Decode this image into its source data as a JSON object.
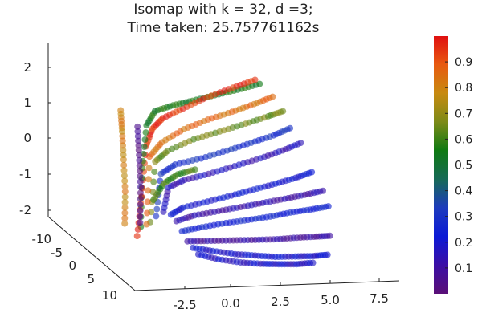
{
  "chart_data": {
    "type": "scatter",
    "title_line1": "Isomap with k = 32, d =3;",
    "title_line2": "Time taken: 25.757761162s",
    "z_axis": {
      "range": [
        -2.3,
        2.5
      ],
      "ticks": [
        "-2",
        "-1",
        "0",
        "1",
        "2"
      ]
    },
    "y_axis": {
      "range": [
        -12,
        13
      ],
      "ticks": [
        "-10",
        "-5",
        "0",
        "5",
        "10"
      ]
    },
    "x_axis": {
      "range": [
        -5,
        9
      ],
      "ticks": [
        "-2.5",
        "0.0",
        "2.5",
        "5.0",
        "7.5"
      ]
    },
    "colorbar": {
      "range": [
        0.0,
        1.0
      ],
      "ticks": [
        "0.1",
        "0.2",
        "0.3",
        "0.4",
        "0.5",
        "0.6",
        "0.7",
        "0.8",
        "0.9"
      ],
      "colors": [
        "#5a0f77",
        "#3b0fa6",
        "#0c1ad6",
        "#1d3bbd",
        "#176a57",
        "#0f7a12",
        "#7c8a18",
        "#c78a10",
        "#e85a10",
        "#e01010"
      ]
    },
    "marker_opacity": 0.62,
    "strands": [
      {
        "color_value": 0.95,
        "points": [
          [
            -2.6,
            0,
            -1.9
          ],
          [
            -2.2,
            -1,
            -0.9
          ],
          [
            -1.8,
            -2,
            0.4
          ],
          [
            -1.3,
            -3,
            0.8
          ],
          [
            -0.6,
            -4,
            1.0
          ],
          [
            0.5,
            -4.5,
            1.2
          ],
          [
            1.8,
            -5,
            1.45
          ],
          [
            3.2,
            -5.5,
            1.65
          ],
          [
            4.4,
            -6,
            1.8
          ]
        ]
      },
      {
        "color_value": 0.55,
        "points": [
          [
            -2.5,
            0.5,
            -1.6
          ],
          [
            -2.0,
            -2,
            -0.2
          ],
          [
            -1.6,
            -3,
            0.9
          ],
          [
            -1.0,
            -4,
            1.2
          ],
          [
            0.0,
            -4.5,
            1.3
          ],
          [
            1.0,
            -4.6,
            1.4
          ],
          [
            2.2,
            -5,
            1.5
          ],
          [
            3.4,
            -5.3,
            1.6
          ],
          [
            4.6,
            -5.8,
            1.7
          ]
        ]
      },
      {
        "color_value": 0.85,
        "points": [
          [
            -2.3,
            1,
            -1.5
          ],
          [
            -1.8,
            -1,
            0.2
          ],
          [
            -1.0,
            -2,
            0.5
          ],
          [
            0.2,
            -2.5,
            0.8
          ],
          [
            1.5,
            -3,
            1.0
          ],
          [
            2.8,
            -3.5,
            1.15
          ],
          [
            4.0,
            -4,
            1.3
          ],
          [
            5.0,
            -4.4,
            1.45
          ]
        ]
      },
      {
        "color_value": 0.65,
        "points": [
          [
            -2.2,
            1.5,
            -1.4
          ],
          [
            -1.6,
            -0.5,
            0.1
          ],
          [
            -0.8,
            -1.5,
            0.3
          ],
          [
            0.6,
            -2,
            0.55
          ],
          [
            2.0,
            -2.5,
            0.7
          ],
          [
            3.4,
            -3,
            0.85
          ],
          [
            4.6,
            -3.4,
            1.0
          ],
          [
            5.4,
            -3.7,
            1.1
          ]
        ]
      },
      {
        "color_value": 0.3,
        "points": [
          [
            -2.0,
            2,
            -1.2
          ],
          [
            -1.4,
            0,
            -0.2
          ],
          [
            -0.6,
            -0.5,
            0.0
          ],
          [
            0.8,
            -1,
            0.1
          ],
          [
            2.2,
            -1.5,
            0.25
          ],
          [
            3.5,
            -2,
            0.4
          ],
          [
            4.7,
            -2.4,
            0.55
          ],
          [
            5.6,
            -2.8,
            0.7
          ]
        ]
      },
      {
        "color_value": 0.15,
        "points": [
          [
            -1.8,
            3,
            -1.0
          ],
          [
            -1.2,
            1,
            -0.5
          ],
          [
            -0.3,
            0.5,
            -0.35
          ],
          [
            1.0,
            0,
            -0.25
          ],
          [
            2.4,
            -0.5,
            -0.1
          ],
          [
            3.8,
            -1,
            0.05
          ],
          [
            5.0,
            -1.5,
            0.2
          ],
          [
            6.0,
            -2,
            0.35
          ]
        ]
      },
      {
        "color_value": 0.22,
        "points": [
          [
            -1.6,
            4,
            -1.0
          ],
          [
            -0.8,
            3,
            -0.9
          ],
          [
            0.5,
            2.5,
            -0.8
          ],
          [
            1.8,
            2,
            -0.7
          ],
          [
            3.0,
            1.5,
            -0.6
          ],
          [
            4.2,
            1,
            -0.5
          ],
          [
            5.3,
            0.5,
            -0.4
          ],
          [
            6.2,
            0,
            -0.3
          ]
        ]
      },
      {
        "color_value": 0.12,
        "points": [
          [
            -1.5,
            5,
            -1.1
          ],
          [
            -0.5,
            4.5,
            -1.0
          ],
          [
            0.8,
            4,
            -0.95
          ],
          [
            2.0,
            3.5,
            -0.9
          ],
          [
            3.2,
            3,
            -0.85
          ],
          [
            4.4,
            2.5,
            -0.8
          ],
          [
            5.5,
            2,
            -0.75
          ],
          [
            6.5,
            1.5,
            -0.7
          ]
        ]
      },
      {
        "color_value": 0.25,
        "points": [
          [
            -1.4,
            6,
            -1.3
          ],
          [
            -0.3,
            5.5,
            -1.25
          ],
          [
            1.0,
            5,
            -1.2
          ],
          [
            2.2,
            4.5,
            -1.18
          ],
          [
            3.4,
            4,
            -1.15
          ],
          [
            4.5,
            3.5,
            -1.1
          ],
          [
            5.6,
            3,
            -1.08
          ],
          [
            6.6,
            2.5,
            -1.05
          ]
        ]
      },
      {
        "color_value": 0.1,
        "points": [
          [
            -1.3,
            7,
            -1.5
          ],
          [
            -0.2,
            6.5,
            -1.55
          ],
          [
            1.0,
            6,
            -1.6
          ],
          [
            2.2,
            5.5,
            -1.65
          ],
          [
            3.4,
            5,
            -1.7
          ],
          [
            4.5,
            4.5,
            -1.72
          ],
          [
            5.6,
            4,
            -1.75
          ],
          [
            6.5,
            3.5,
            -1.78
          ]
        ]
      },
      {
        "color_value": 0.2,
        "points": [
          [
            -1.2,
            8,
            -1.6
          ],
          [
            -0.1,
            7.5,
            -1.75
          ],
          [
            1.1,
            7,
            -1.9
          ],
          [
            2.2,
            6.5,
            -2.0
          ],
          [
            3.3,
            6,
            -2.1
          ],
          [
            4.4,
            5.5,
            -2.15
          ],
          [
            5.4,
            5,
            -2.2
          ],
          [
            6.2,
            4.5,
            -2.22
          ]
        ]
      },
      {
        "color_value": 0.18,
        "points": [
          [
            -1.1,
            9,
            -1.7
          ],
          [
            0.0,
            8.5,
            -1.9
          ],
          [
            1.2,
            8,
            -2.05
          ],
          [
            2.3,
            7.5,
            -2.15
          ],
          [
            3.3,
            7,
            -2.22
          ],
          [
            4.3,
            6.5,
            -2.28
          ],
          [
            5.2,
            6,
            -2.3
          ]
        ]
      },
      {
        "color_value": 0.8,
        "points": [
          [
            -2.7,
            -3,
            -1.8
          ],
          [
            -2.5,
            -4,
            -1.0
          ],
          [
            -2.4,
            -5,
            -0.2
          ],
          [
            -2.3,
            -6,
            0.5
          ],
          [
            -2.2,
            -7,
            1.0
          ]
        ]
      },
      {
        "color_value": 0.05,
        "points": [
          [
            -2.1,
            -2,
            -1.7
          ],
          [
            -1.9,
            -3,
            -0.8
          ],
          [
            -1.8,
            -4,
            0.0
          ],
          [
            -1.7,
            -5,
            0.7
          ]
        ]
      },
      {
        "color_value": 0.6,
        "points": [
          [
            -1.6,
            -1,
            -1.0
          ],
          [
            -1.0,
            -1.5,
            -0.6
          ],
          [
            -0.2,
            -2,
            -0.4
          ],
          [
            0.7,
            -2.2,
            -0.3
          ]
        ]
      }
    ]
  }
}
